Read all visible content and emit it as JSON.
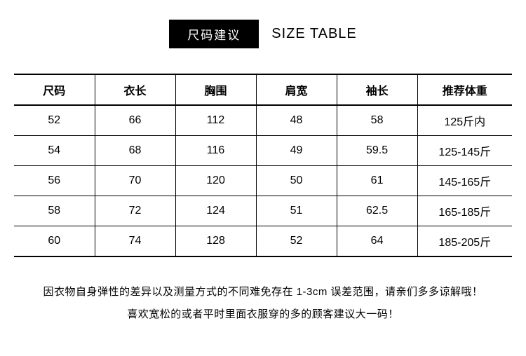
{
  "header": {
    "badge": "尺码建议",
    "title_en": "SIZE TABLE"
  },
  "table": {
    "columns": [
      "尺码",
      "衣长",
      "胸围",
      "肩宽",
      "袖长",
      "推荐体重"
    ],
    "rows": [
      [
        "52",
        "66",
        "112",
        "48",
        "58",
        "125斤内"
      ],
      [
        "54",
        "68",
        "116",
        "49",
        "59.5",
        "125-145斤"
      ],
      [
        "56",
        "70",
        "120",
        "50",
        "61",
        "145-165斤"
      ],
      [
        "58",
        "72",
        "124",
        "51",
        "62.5",
        "165-185斤"
      ],
      [
        "60",
        "74",
        "128",
        "52",
        "64",
        "185-205斤"
      ]
    ]
  },
  "notes": {
    "line1": "因衣物自身弹性的差异以及测量方式的不同难免存在 1-3cm 误差范围，请亲们多多谅解哦！",
    "line2": "喜欢宽松的或者平时里面衣服穿的多的顾客建议大一码！"
  }
}
